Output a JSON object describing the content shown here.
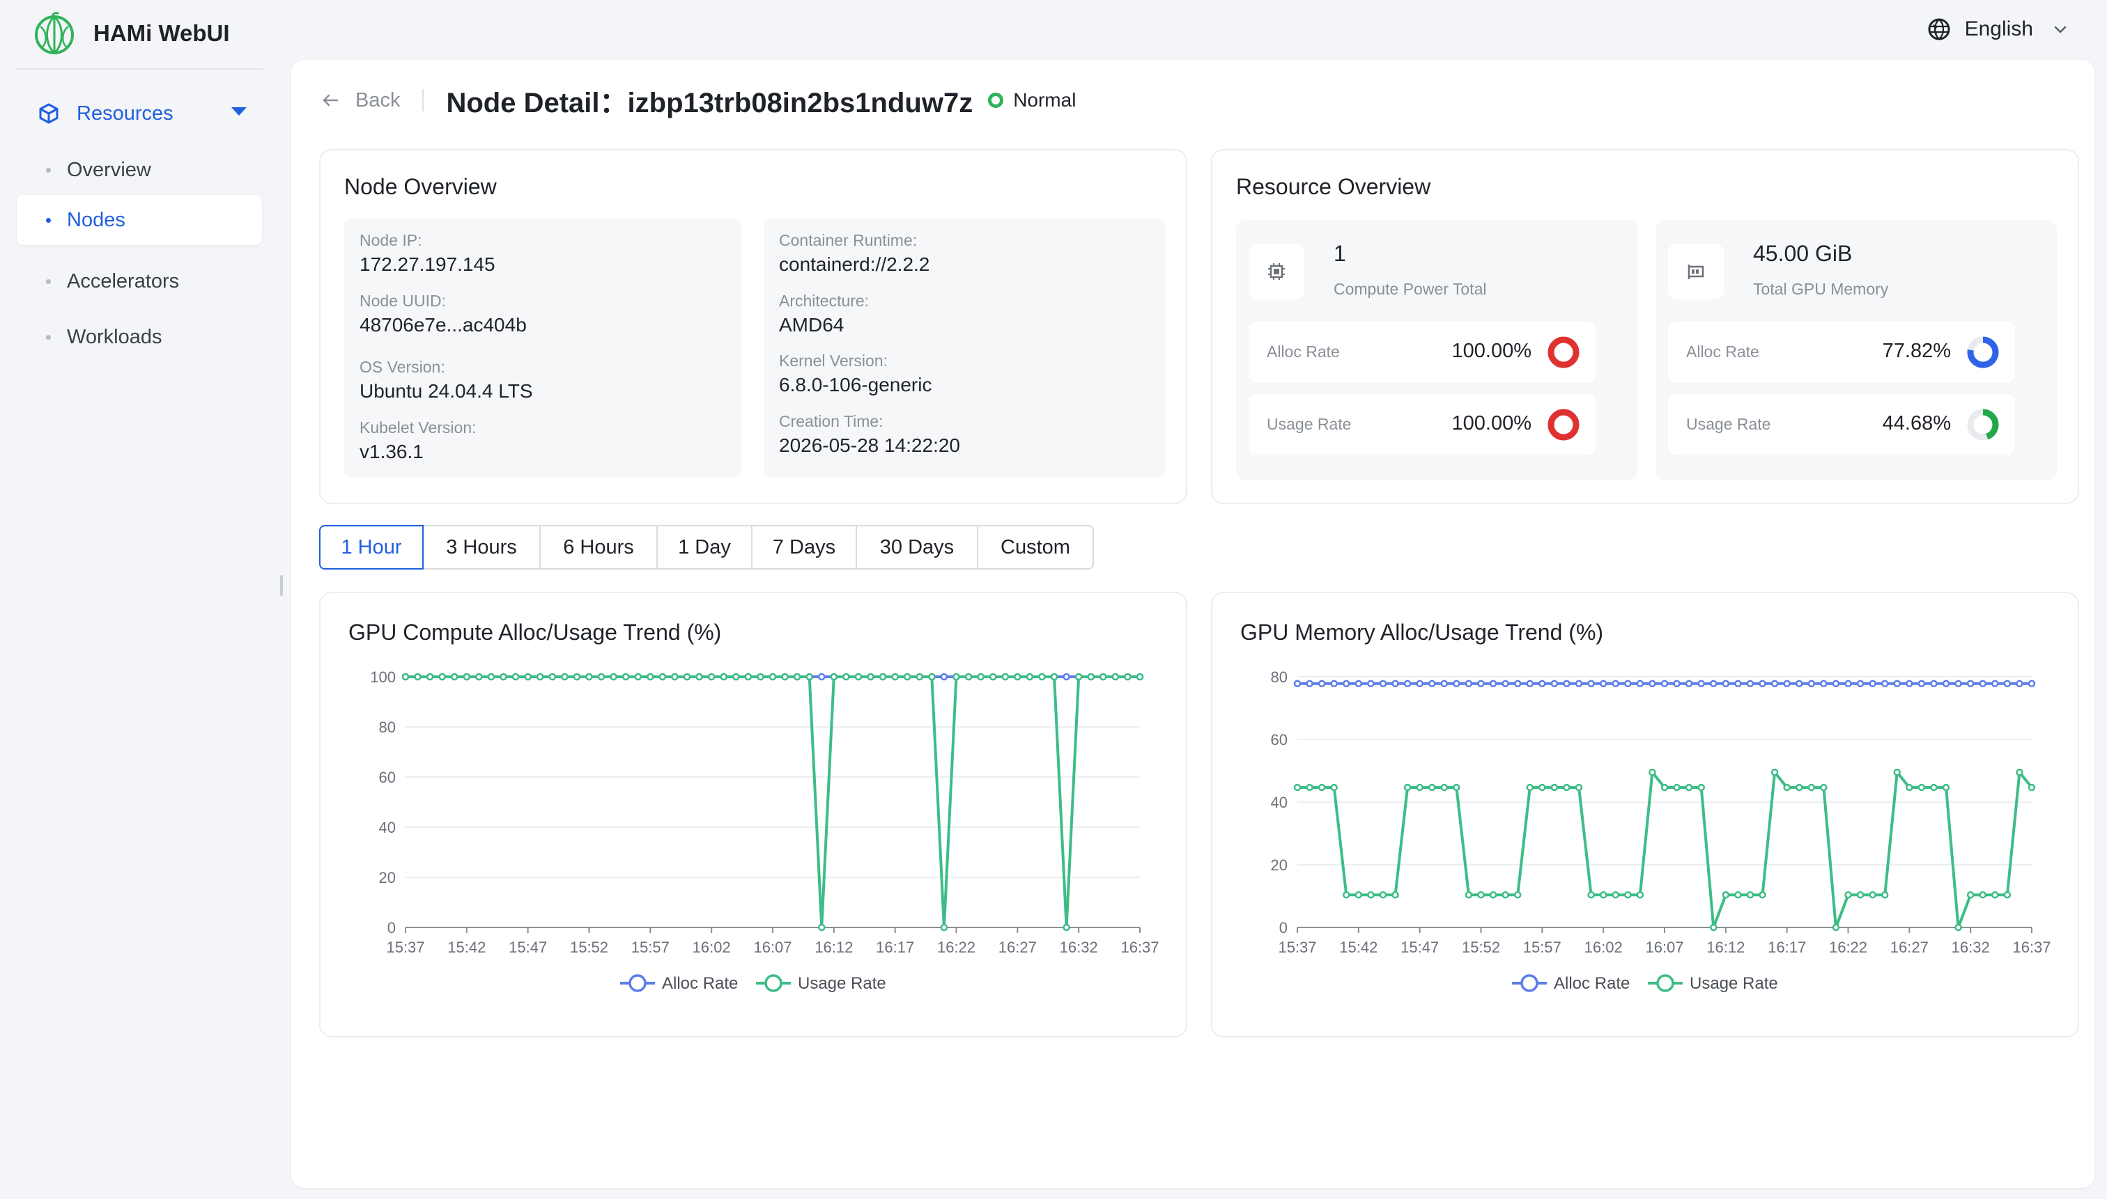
{
  "app": {
    "name": "HAMi WebUI"
  },
  "language": {
    "label": "English"
  },
  "sidebar": {
    "group_label": "Resources",
    "items": [
      {
        "label": "Overview",
        "active": false
      },
      {
        "label": "Nodes",
        "active": true
      },
      {
        "label": "Accelerators",
        "active": false
      },
      {
        "label": "Workloads",
        "active": false
      }
    ]
  },
  "header": {
    "back_label": "Back",
    "title": "Node Detail：izbp13trb08in2bs1nduw7z",
    "status": "Normal",
    "status_color": "#2fb35a"
  },
  "node_overview": {
    "title": "Node Overview",
    "left": [
      {
        "label": "Node IP:",
        "value": "172.27.197.145"
      },
      {
        "label": "Node UUID:",
        "value": "48706e7e...ac404b"
      },
      {
        "label": "OS Version:",
        "value": "Ubuntu 24.04.4 LTS"
      },
      {
        "label": "Kubelet Version:",
        "value": "v1.36.1"
      }
    ],
    "right": [
      {
        "label": "Container Runtime:",
        "value": "containerd://2.2.2"
      },
      {
        "label": "Architecture:",
        "value": "AMD64"
      },
      {
        "label": "Kernel Version:",
        "value": "6.8.0-106-generic"
      },
      {
        "label": "Creation Time:",
        "value": "2026-05-28 14:22:20"
      }
    ]
  },
  "resource_overview": {
    "title": "Resource Overview",
    "compute": {
      "value": "1",
      "caption": "Compute Power Total",
      "icon": "chip-icon",
      "alloc_label": "Alloc Rate",
      "alloc_value": "100.00%",
      "alloc_fraction": 1.0,
      "alloc_color": "#e03131",
      "usage_label": "Usage Rate",
      "usage_value": "100.00%",
      "usage_fraction": 1.0,
      "usage_color": "#e03131"
    },
    "memory": {
      "value": "45.00 GiB",
      "caption": "Total GPU Memory",
      "icon": "memory-card-icon",
      "alloc_label": "Alloc Rate",
      "alloc_value": "77.82%",
      "alloc_fraction": 0.7782,
      "alloc_color": "#2f64e8",
      "usage_label": "Usage Rate",
      "usage_value": "44.68%",
      "usage_fraction": 0.4468,
      "usage_color": "#22a84a"
    }
  },
  "time_ranges": {
    "options": [
      "1 Hour",
      "3 Hours",
      "6 Hours",
      "1 Day",
      "7 Days",
      "30 Days",
      "Custom"
    ],
    "selected": "1 Hour"
  },
  "colors": {
    "alloc": "#5b7ee8",
    "usage": "#3dbd86",
    "accent": "#1f5fe0"
  },
  "chart_data": [
    {
      "type": "line",
      "title": "GPU Compute Alloc/Usage Trend (%)",
      "xtick_labels": [
        "15:37",
        "15:42",
        "15:47",
        "15:52",
        "15:57",
        "16:02",
        "16:07",
        "16:12",
        "16:17",
        "16:22",
        "16:27",
        "16:32",
        "16:37"
      ],
      "ylim": [
        0,
        100
      ],
      "yticks": [
        0,
        20,
        40,
        60,
        80,
        100
      ],
      "legend": "bottom",
      "grid": true,
      "series": [
        {
          "name": "Alloc Rate",
          "values": [
            100,
            100,
            100,
            100,
            100,
            100,
            100,
            100,
            100,
            100,
            100,
            100,
            100,
            100,
            100,
            100,
            100,
            100,
            100,
            100,
            100,
            100,
            100,
            100,
            100,
            100,
            100,
            100,
            100,
            100,
            100,
            100,
            100,
            100,
            100,
            100,
            100,
            100,
            100,
            100,
            100,
            100,
            100,
            100,
            100,
            100,
            100,
            100,
            100,
            100,
            100,
            100,
            100,
            100,
            100,
            100,
            100,
            100,
            100,
            100,
            100
          ]
        },
        {
          "name": "Usage Rate",
          "values": [
            100,
            100,
            100,
            100,
            100,
            100,
            100,
            100,
            100,
            100,
            100,
            100,
            100,
            100,
            100,
            100,
            100,
            100,
            100,
            100,
            100,
            100,
            100,
            100,
            100,
            100,
            100,
            100,
            100,
            100,
            100,
            100,
            100,
            100,
            0,
            100,
            100,
            100,
            100,
            100,
            100,
            100,
            100,
            100,
            0,
            100,
            100,
            100,
            100,
            100,
            100,
            100,
            100,
            100,
            0,
            100,
            100,
            100,
            100,
            100,
            100
          ]
        }
      ]
    },
    {
      "type": "line",
      "title": "GPU Memory Alloc/Usage Trend (%)",
      "xtick_labels": [
        "15:37",
        "15:42",
        "15:47",
        "15:52",
        "15:57",
        "16:02",
        "16:07",
        "16:12",
        "16:17",
        "16:22",
        "16:27",
        "16:32",
        "16:37"
      ],
      "ylim": [
        0,
        80
      ],
      "yticks": [
        0,
        20,
        40,
        60,
        80
      ],
      "legend": "bottom",
      "grid": true,
      "series": [
        {
          "name": "Alloc Rate",
          "values": [
            77.82,
            77.82,
            77.82,
            77.82,
            77.82,
            77.82,
            77.82,
            77.82,
            77.82,
            77.82,
            77.82,
            77.82,
            77.82,
            77.82,
            77.82,
            77.82,
            77.82,
            77.82,
            77.82,
            77.82,
            77.82,
            77.82,
            77.82,
            77.82,
            77.82,
            77.82,
            77.82,
            77.82,
            77.82,
            77.82,
            77.82,
            77.82,
            77.82,
            77.82,
            77.82,
            77.82,
            77.82,
            77.82,
            77.82,
            77.82,
            77.82,
            77.82,
            77.82,
            77.82,
            77.82,
            77.82,
            77.82,
            77.82,
            77.82,
            77.82,
            77.82,
            77.82,
            77.82,
            77.82,
            77.82,
            77.82,
            77.82,
            77.82,
            77.82,
            77.82,
            77.82
          ]
        },
        {
          "name": "Usage Rate",
          "values": [
            44.68,
            44.68,
            44.68,
            44.68,
            10.4,
            10.4,
            10.4,
            10.4,
            10.4,
            44.68,
            44.68,
            44.68,
            44.68,
            44.68,
            10.4,
            10.4,
            10.4,
            10.4,
            10.4,
            44.68,
            44.68,
            44.68,
            44.68,
            44.68,
            10.4,
            10.4,
            10.4,
            10.4,
            10.4,
            49.5,
            44.68,
            44.68,
            44.68,
            44.68,
            0,
            10.4,
            10.4,
            10.4,
            10.4,
            49.5,
            44.68,
            44.68,
            44.68,
            44.68,
            0,
            10.4,
            10.4,
            10.4,
            10.4,
            49.5,
            44.68,
            44.68,
            44.68,
            44.68,
            0,
            10.4,
            10.4,
            10.4,
            10.4,
            49.5,
            44.68
          ]
        }
      ]
    }
  ]
}
